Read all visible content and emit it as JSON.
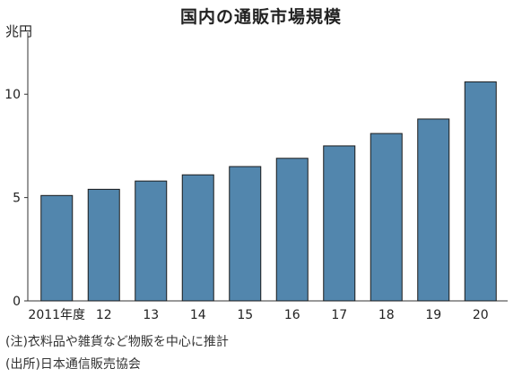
{
  "chart_data": {
    "type": "bar",
    "title": "国内の通販市場規模",
    "unit_label": "兆円",
    "categories": [
      "2011年度",
      "12",
      "13",
      "14",
      "15",
      "16",
      "17",
      "18",
      "19",
      "20"
    ],
    "values": [
      5.1,
      5.4,
      5.8,
      6.1,
      6.5,
      6.9,
      7.5,
      8.1,
      8.8,
      10.6
    ],
    "ylim": [
      0,
      13
    ],
    "yticks": [
      0,
      5,
      10
    ],
    "grid": false,
    "bar_color": "#5286ad",
    "bar_edge_color": "#1a1a1a"
  },
  "notes": [
    "(注)衣料品や雑貨など物販を中心に推計",
    "(出所)日本通信販売協会"
  ]
}
